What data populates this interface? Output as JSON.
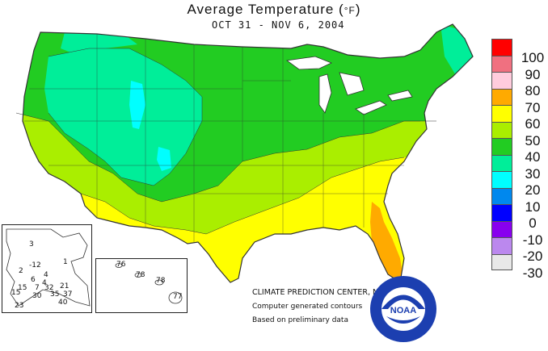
{
  "title": "Average Temperature (",
  "title_unit": "°F",
  "title_close": ")",
  "subtitle": "OCT 31 - NOV  6, 2004",
  "legend": {
    "labels": [
      "100",
      "90",
      "80",
      "70",
      "60",
      "50",
      "40",
      "30",
      "20",
      "10",
      "0",
      "-10",
      "-20",
      "-30"
    ],
    "colors": [
      "#ff0000",
      "#f07080",
      "#ffccdd",
      "#ffaa00",
      "#ffff00",
      "#aaee00",
      "#22cc22",
      "#00ee99",
      "#00ffff",
      "#0088ee",
      "#0000ff",
      "#8800ee",
      "#bb88ee",
      "#e8e8e8"
    ]
  },
  "credits": {
    "center": "CLIMATE PREDICTION CENTER, NOAA",
    "line2": "Computer generated contours",
    "line3": "Based on preliminary data"
  },
  "logo_text": "NOAA",
  "alaska_stations": [
    "3",
    "-12",
    "1",
    "2",
    "4",
    "4",
    "15",
    "6",
    "7",
    "32",
    "21",
    "15",
    "35",
    "37",
    "30",
    "23",
    "40"
  ],
  "hawaii_stations": [
    "76",
    "78",
    "78",
    "77"
  ]
}
